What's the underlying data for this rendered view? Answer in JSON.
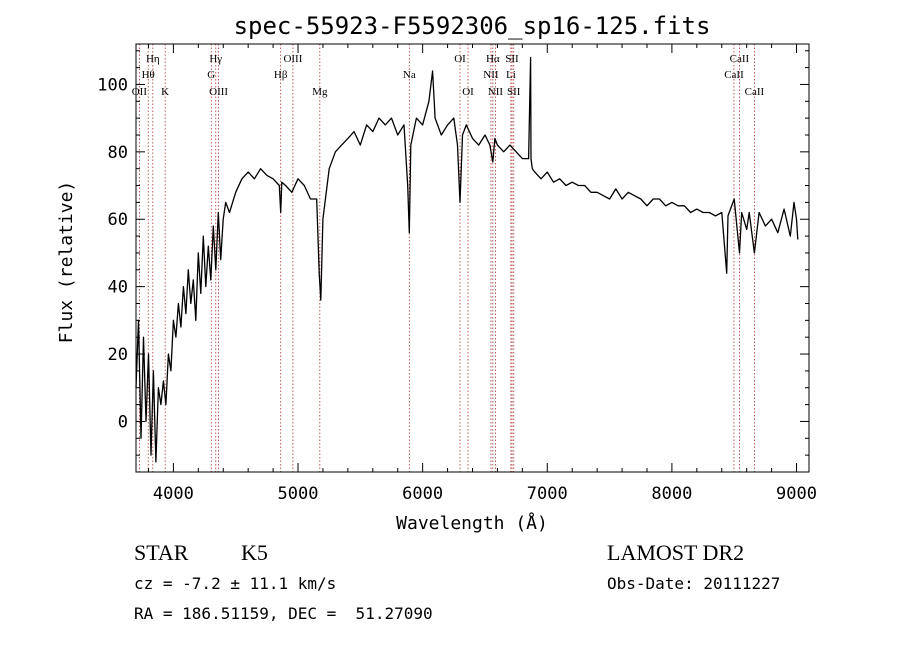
{
  "chart_data": {
    "type": "line",
    "title": "spec-55923-F5592306_sp16-125.fits",
    "xlabel": "Wavelength (Å)",
    "ylabel": "Flux (relative)",
    "xlim": [
      3700,
      9100
    ],
    "ylim": [
      -15,
      112
    ],
    "x_ticks": [
      4000,
      5000,
      6000,
      7000,
      8000,
      9000
    ],
    "y_ticks": [
      0,
      20,
      40,
      60,
      80,
      100
    ],
    "grid": false,
    "series": [
      {
        "x": [
          3700,
          3720,
          3740,
          3760,
          3780,
          3800,
          3820,
          3840,
          3860,
          3880,
          3900,
          3920,
          3940,
          3960,
          3980,
          4000,
          4020,
          4040,
          4060,
          4080,
          4100,
          4120,
          4140,
          4160,
          4180,
          4200,
          4220,
          4240,
          4260,
          4280,
          4300,
          4320,
          4340,
          4360,
          4380,
          4400,
          4420,
          4450,
          4500,
          4550,
          4600,
          4650,
          4700,
          4750,
          4800,
          4850,
          4861,
          4870,
          4900,
          4950,
          5000,
          5050,
          5100,
          5150,
          5170,
          5183,
          5200,
          5250,
          5300,
          5350,
          5400,
          5450,
          5500,
          5550,
          5600,
          5650,
          5700,
          5750,
          5800,
          5850,
          5880,
          5893,
          5905,
          5950,
          6000,
          6050,
          6080,
          6100,
          6150,
          6200,
          6250,
          6280,
          6300,
          6320,
          6350,
          6400,
          6450,
          6500,
          6540,
          6563,
          6580,
          6600,
          6650,
          6700,
          6750,
          6800,
          6850,
          6866,
          6869,
          6880,
          6900,
          6950,
          7000,
          7050,
          7100,
          7150,
          7200,
          7250,
          7300,
          7350,
          7400,
          7450,
          7500,
          7550,
          7600,
          7650,
          7700,
          7750,
          7800,
          7850,
          7900,
          7950,
          8000,
          8050,
          8100,
          8150,
          8200,
          8250,
          8300,
          8350,
          8400,
          8440,
          8450,
          8460,
          8500,
          8542,
          8560,
          8600,
          8620,
          8662,
          8700,
          8750,
          8800,
          8850,
          8900,
          8950,
          8980,
          9000,
          9010
        ],
        "y": [
          10,
          30,
          -5,
          25,
          0,
          20,
          -10,
          15,
          -12,
          10,
          5,
          12,
          5,
          20,
          15,
          30,
          25,
          35,
          28,
          40,
          32,
          45,
          35,
          42,
          30,
          50,
          38,
          55,
          40,
          52,
          42,
          58,
          45,
          62,
          48,
          60,
          65,
          62,
          68,
          72,
          74,
          72,
          75,
          73,
          72,
          70,
          62,
          71,
          70,
          68,
          72,
          70,
          66,
          66,
          44,
          36,
          60,
          75,
          80,
          82,
          84,
          86,
          82,
          88,
          86,
          90,
          88,
          90,
          85,
          88,
          70,
          56,
          82,
          90,
          88,
          95,
          104,
          90,
          85,
          88,
          90,
          82,
          65,
          85,
          88,
          84,
          82,
          85,
          82,
          77,
          84,
          82,
          80,
          82,
          80,
          78,
          78,
          108,
          78,
          75,
          74,
          72,
          74,
          71,
          72,
          70,
          71,
          70,
          70,
          68,
          68,
          67,
          66,
          69,
          66,
          68,
          67,
          66,
          64,
          66,
          66,
          64,
          65,
          64,
          64,
          62,
          63,
          62,
          62,
          61,
          62,
          44,
          61,
          62,
          66,
          50,
          62,
          57,
          62,
          50,
          62,
          58,
          60,
          56,
          63,
          55,
          65,
          60,
          54
        ]
      }
    ],
    "line_labels": [
      {
        "text": "Hη",
        "wave": 3835,
        "row": 0
      },
      {
        "text": "Hθ",
        "wave": 3798,
        "row": 1
      },
      {
        "text": "OII",
        "wave": 3727,
        "row": 2
      },
      {
        "text": "K",
        "wave": 3934,
        "row": 2
      },
      {
        "text": "Hγ",
        "wave": 4340,
        "row": 0
      },
      {
        "text": "G",
        "wave": 4304,
        "row": 1
      },
      {
        "text": "OIII",
        "wave": 4363,
        "row": 2
      },
      {
        "text": "OIII",
        "wave": 4959,
        "row": 0
      },
      {
        "text": "Hβ",
        "wave": 4861,
        "row": 1
      },
      {
        "text": "Mg",
        "wave": 5175,
        "row": 2
      },
      {
        "text": "Na",
        "wave": 5893,
        "row": 1
      },
      {
        "text": "OI",
        "wave": 6300,
        "row": 0
      },
      {
        "text": "OI",
        "wave": 6364,
        "row": 2
      },
      {
        "text": "Hα",
        "wave": 6563,
        "row": 0
      },
      {
        "text": "SII",
        "wave": 6717,
        "row": 0
      },
      {
        "text": "NII",
        "wave": 6548,
        "row": 1
      },
      {
        "text": "Li",
        "wave": 6708,
        "row": 1
      },
      {
        "text": "NII",
        "wave": 6584,
        "row": 2
      },
      {
        "text": "SII",
        "wave": 6731,
        "row": 2
      },
      {
        "text": "CaII",
        "wave": 8542,
        "row": 0
      },
      {
        "text": "CaII",
        "wave": 8498,
        "row": 1
      },
      {
        "text": "CaII",
        "wave": 8662,
        "row": 2
      }
    ],
    "marker_lines": [
      3727,
      3798,
      3835,
      3934,
      4304,
      4340,
      4363,
      4861,
      4959,
      5175,
      5893,
      6300,
      6364,
      6548,
      6563,
      6584,
      6708,
      6717,
      6731,
      8498,
      8542,
      8662
    ]
  },
  "footer": {
    "object_class": "STAR",
    "subclass": "K5",
    "survey": "LAMOST DR2",
    "cz": "cz = -7.2 ± 11.1 km/s",
    "obs_date": "Obs-Date: 20111227",
    "coords": "RA = 186.51159, DEC =  51.27090"
  },
  "colors": {
    "spectrum": "#000000",
    "marker_lines": "#b03030"
  }
}
